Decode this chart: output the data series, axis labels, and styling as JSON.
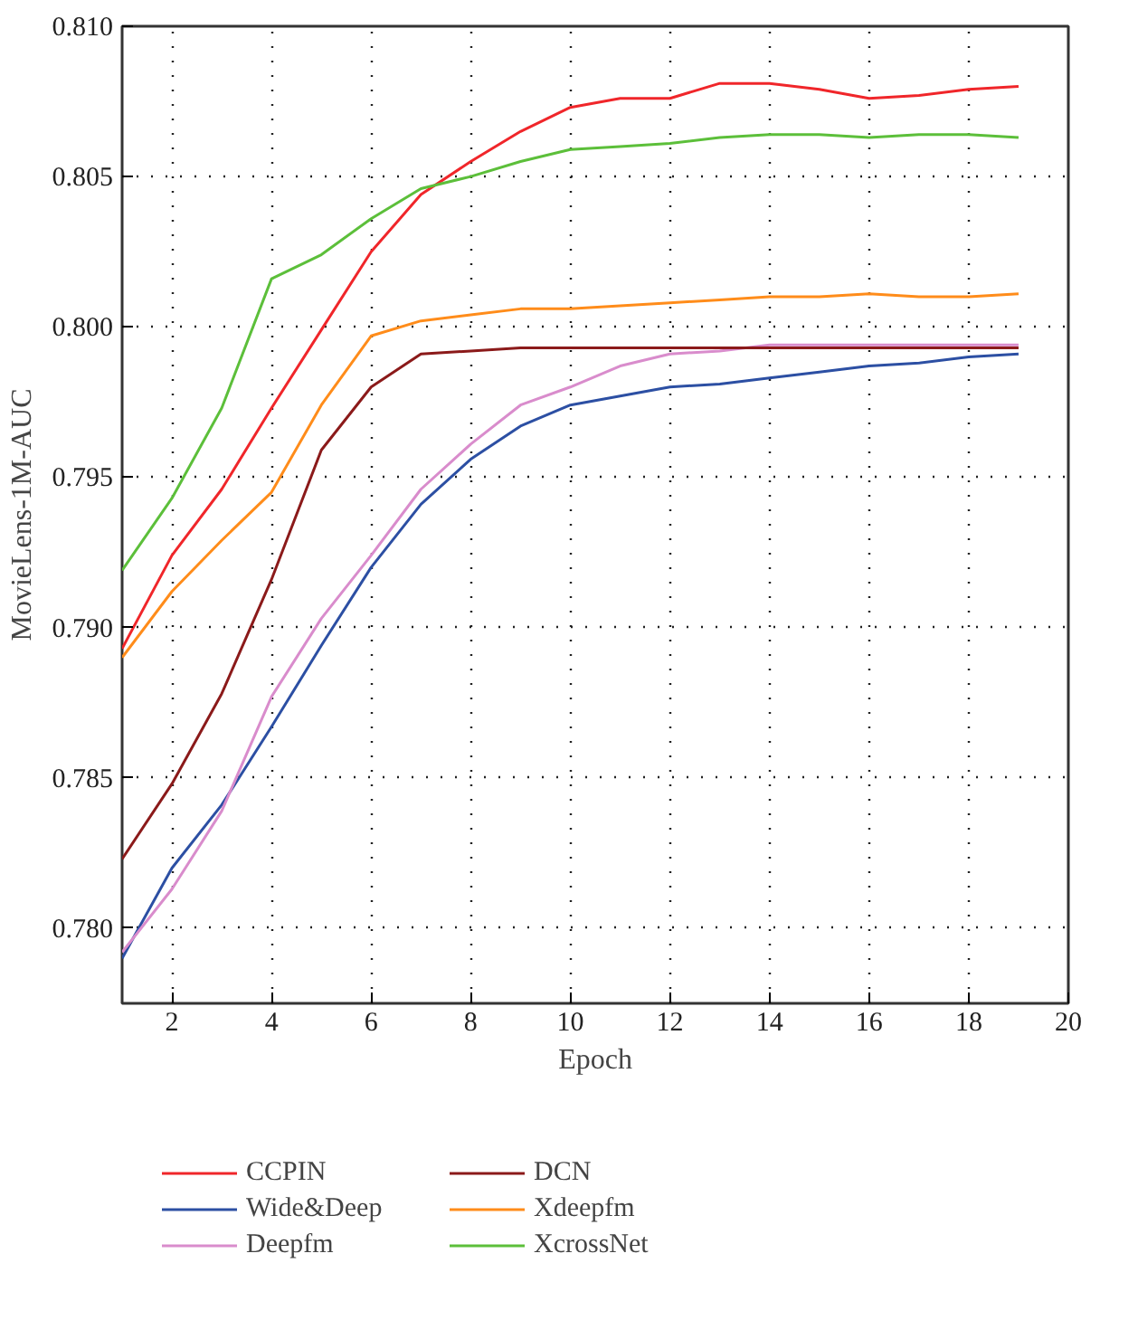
{
  "chart_data": {
    "type": "line",
    "xlabel": "Epoch",
    "ylabel": "MovieLens-1M-AUC",
    "xlim": [
      1,
      20
    ],
    "xticks": [
      2,
      4,
      6,
      8,
      10,
      12,
      14,
      16,
      18,
      20
    ],
    "ylim": [
      0.7775,
      0.81
    ],
    "yticks": [
      {
        "value": 0.78,
        "label": "0.780"
      },
      {
        "value": 0.785,
        "label": "0.785"
      },
      {
        "value": 0.79,
        "label": "0.790"
      },
      {
        "value": 0.795,
        "label": "0.795"
      },
      {
        "value": 0.8,
        "label": "0.800"
      },
      {
        "value": 0.805,
        "label": "0.805"
      },
      {
        "value": 0.81,
        "label": "0.810"
      }
    ],
    "grid": true,
    "legend": "bottom",
    "marker": "none",
    "line_style": "solid",
    "x": [
      1,
      2,
      3,
      4,
      5,
      6,
      7,
      8,
      9,
      10,
      11,
      12,
      13,
      14,
      15,
      16,
      17,
      18,
      19
    ],
    "series": [
      {
        "name": "CCPIN",
        "color": "#f0262a",
        "values": [
          0.7893,
          0.7924,
          0.7946,
          0.7973,
          0.7999,
          0.8025,
          0.8044,
          0.8055,
          0.8065,
          0.8073,
          0.8076,
          0.8076,
          0.8081,
          0.8081,
          0.8079,
          0.8076,
          0.8077,
          0.8079,
          0.808
        ]
      },
      {
        "name": "Wide&Deep",
        "color": "#2c4fa3",
        "values": [
          0.779,
          0.782,
          0.7841,
          0.7867,
          0.7894,
          0.792,
          0.7941,
          0.7956,
          0.7967,
          0.7974,
          0.7977,
          0.798,
          0.7981,
          0.7983,
          0.7985,
          0.7987,
          0.7988,
          0.799,
          0.7991
        ]
      },
      {
        "name": "Deepfm",
        "color": "#d98ccc",
        "values": [
          0.7792,
          0.7813,
          0.7839,
          0.7877,
          0.7903,
          0.7924,
          0.7946,
          0.7961,
          0.7974,
          0.798,
          0.7987,
          0.7991,
          0.7992,
          0.7994,
          0.7994,
          0.7994,
          0.7994,
          0.7994,
          0.7994
        ]
      },
      {
        "name": "DCN",
        "color": "#8b1a1a",
        "values": [
          0.7823,
          0.7848,
          0.7878,
          0.7916,
          0.7959,
          0.798,
          0.7991,
          0.7992,
          0.7993,
          0.7993,
          0.7993,
          0.7993,
          0.7993,
          0.7993,
          0.7993,
          0.7993,
          0.7993,
          0.7993,
          0.7993
        ]
      },
      {
        "name": "Xdeepfm",
        "color": "#ff8c1a",
        "values": [
          0.789,
          0.7912,
          0.7929,
          0.7945,
          0.7974,
          0.7997,
          0.8002,
          0.8004,
          0.8006,
          0.8006,
          0.8007,
          0.8008,
          0.8009,
          0.801,
          0.801,
          0.8011,
          0.801,
          0.801,
          0.8011
        ]
      },
      {
        "name": "XcrossNet",
        "color": "#5cbf3a",
        "values": [
          0.7919,
          0.7943,
          0.7973,
          0.8016,
          0.8024,
          0.8036,
          0.8046,
          0.805,
          0.8055,
          0.8059,
          0.806,
          0.8061,
          0.8063,
          0.8064,
          0.8064,
          0.8063,
          0.8064,
          0.8064,
          0.8063
        ]
      }
    ]
  }
}
